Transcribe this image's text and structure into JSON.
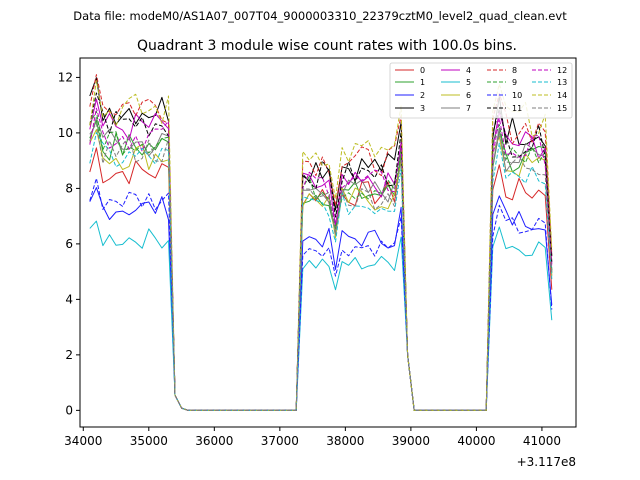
{
  "chart_data": {
    "type": "line",
    "suptitle": "Data file: modeM0/AS1A07_007T04_9000003310_22379cztM0_level2_quad_clean.evt",
    "title": "Quadrant 3 module wise count rates with 100.0s bins.",
    "xlabel": "",
    "ylabel": "",
    "x_offset_label": "+3.117e8",
    "xlim": [
      33950,
      41520
    ],
    "ylim": [
      -0.6,
      12.7
    ],
    "xticks": [
      34000,
      35000,
      36000,
      37000,
      38000,
      39000,
      40000,
      41000
    ],
    "yticks": [
      0,
      2,
      4,
      6,
      8,
      10,
      12
    ],
    "legend_position": "upper-right",
    "segments": [
      {
        "start": 34100,
        "n": 13
      },
      {
        "start": 37350,
        "n": 16
      },
      {
        "start": 40250,
        "n": 10
      }
    ],
    "edges": {
      "seg0_after": [
        0.55,
        0.08,
        0.0
      ],
      "gap_value": 0.0
    },
    "series": [
      {
        "name": "0",
        "color": "#d62728",
        "dash": false,
        "seg_levels": [
          8.6,
          7.8,
          7.9
        ]
      },
      {
        "name": "1",
        "color": "#2ca02c",
        "dash": false,
        "seg_levels": [
          9.5,
          7.8,
          9.0
        ]
      },
      {
        "name": "2",
        "color": "#1f1fff",
        "dash": false,
        "seg_levels": [
          7.3,
          6.2,
          6.9
        ]
      },
      {
        "name": "3",
        "color": "#000000",
        "dash": false,
        "seg_levels": [
          10.9,
          8.8,
          10.1
        ]
      },
      {
        "name": "4",
        "color": "#bf00bf",
        "dash": false,
        "seg_levels": [
          10.2,
          8.1,
          9.6
        ]
      },
      {
        "name": "5",
        "color": "#17becf",
        "dash": false,
        "seg_levels": [
          6.2,
          5.3,
          5.9
        ]
      },
      {
        "name": "6",
        "color": "#bcbd22",
        "dash": false,
        "seg_levels": [
          9.2,
          7.6,
          8.8
        ]
      },
      {
        "name": "7",
        "color": "#7f7f7f",
        "dash": false,
        "seg_levels": [
          9.6,
          7.9,
          9.1
        ]
      },
      {
        "name": "8",
        "color": "#d62728",
        "dash": true,
        "seg_levels": [
          11.0,
          9.0,
          10.2
        ]
      },
      {
        "name": "9",
        "color": "#2ca02c",
        "dash": true,
        "seg_levels": [
          9.8,
          8.0,
          9.2
        ]
      },
      {
        "name": "10",
        "color": "#1f1fff",
        "dash": true,
        "seg_levels": [
          7.6,
          5.9,
          6.6
        ]
      },
      {
        "name": "11",
        "color": "#000000",
        "dash": true,
        "seg_levels": [
          10.4,
          8.5,
          9.7
        ]
      },
      {
        "name": "12",
        "color": "#bf00bf",
        "dash": true,
        "seg_levels": [
          9.9,
          8.2,
          9.4
        ]
      },
      {
        "name": "13",
        "color": "#17becf",
        "dash": true,
        "seg_levels": [
          9.1,
          7.4,
          8.6
        ]
      },
      {
        "name": "14",
        "color": "#bcbd22",
        "dash": true,
        "seg_levels": [
          10.8,
          9.3,
          10.5
        ]
      },
      {
        "name": "15",
        "color": "#7f7f7f",
        "dash": true,
        "seg_levels": [
          9.4,
          7.7,
          8.9
        ]
      }
    ]
  }
}
